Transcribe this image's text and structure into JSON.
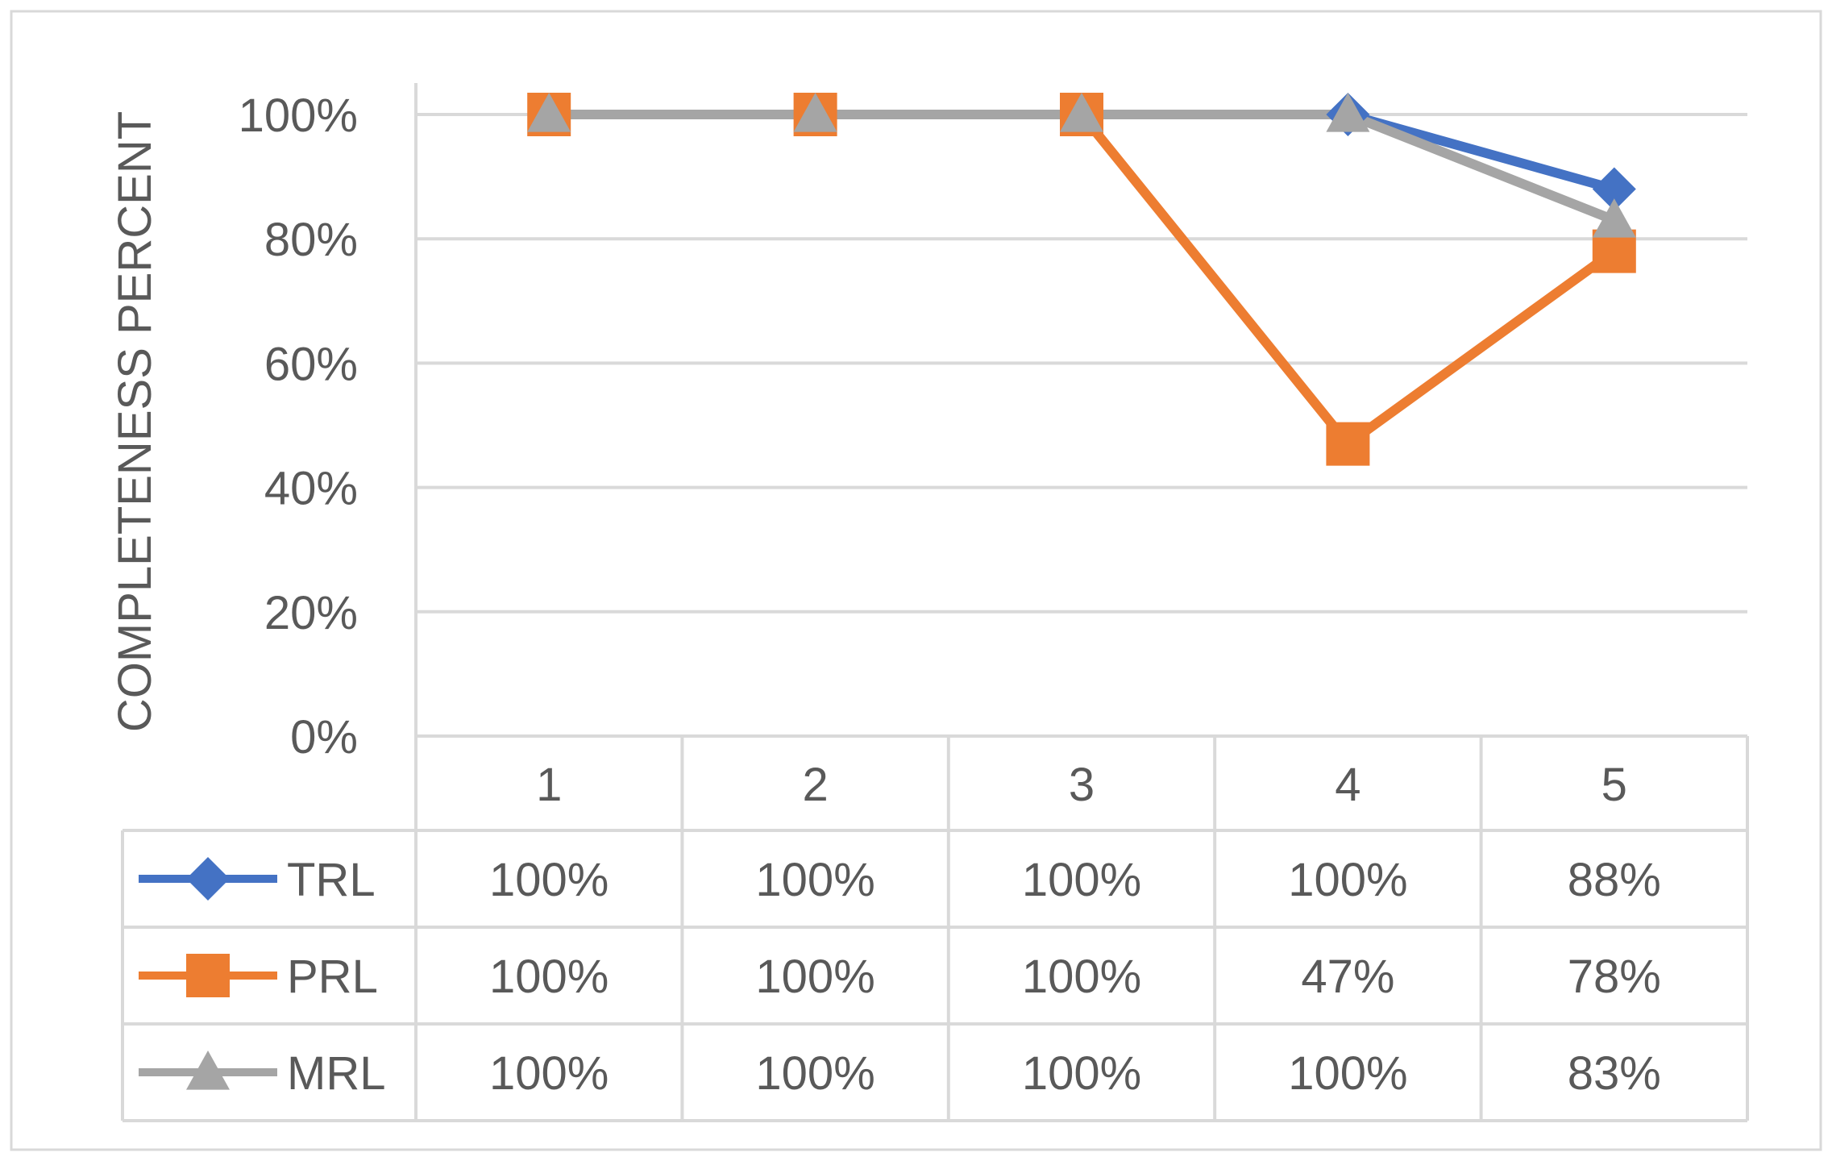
{
  "chart_data": {
    "type": "line",
    "title": "",
    "xlabel": "",
    "ylabel": "COMPLETENESS PERCENT",
    "categories": [
      "1",
      "2",
      "3",
      "4",
      "5"
    ],
    "y_ticks": [
      "0%",
      "20%",
      "40%",
      "60%",
      "80%",
      "100%"
    ],
    "ylim": [
      0,
      100
    ],
    "grid": true,
    "legend": "data-table",
    "series": [
      {
        "name": "TRL",
        "color": "#4472C4",
        "marker": "diamond",
        "values": [
          100,
          100,
          100,
          100,
          88
        ],
        "labels": [
          "100%",
          "100%",
          "100%",
          "100%",
          "88%"
        ]
      },
      {
        "name": "PRL",
        "color": "#ED7D31",
        "marker": "square",
        "values": [
          100,
          100,
          100,
          47,
          78
        ],
        "labels": [
          "100%",
          "100%",
          "100%",
          "47%",
          "78%"
        ]
      },
      {
        "name": "MRL",
        "color": "#A5A5A5",
        "marker": "triangle",
        "values": [
          100,
          100,
          100,
          100,
          83
        ],
        "labels": [
          "100%",
          "100%",
          "100%",
          "100%",
          "83%"
        ]
      }
    ]
  }
}
